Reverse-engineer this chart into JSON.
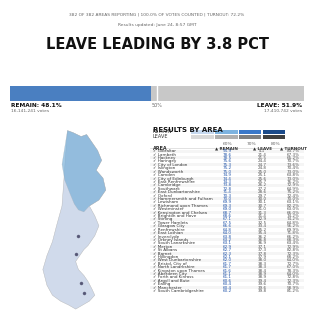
{
  "title": "LEAVE LEADING BY 3.8 PCT",
  "subtitle_line1": "382 OF 382 AREAS REPORTING | 100.0% OF VOTES COUNTED | TURNOUT: 72.2%",
  "subtitle_line2": "Results updated: June 24, 8:57 GMT",
  "remain_pct": 48.1,
  "leave_pct": 51.9,
  "remain_label": "REMAIN: 48.1%",
  "remain_votes": "16,141,241 votes",
  "leave_label": "LEAVE: 51.9%",
  "leave_votes": "17,410,742 votes",
  "remain_bar_color": "#4a7fc1",
  "leave_bar_color": "#c8c8c8",
  "results_title": "RESULTS BY AREA",
  "legend_remain_colors": [
    "#c6d9f0",
    "#7db3e0",
    "#3a78c9",
    "#1a4a8a"
  ],
  "legend_leave_colors": [
    "#d9d9d9",
    "#b0b0b0",
    "#808080",
    "#404040"
  ],
  "pct_labels": [
    "60%",
    "70%",
    "80%"
  ],
  "areas": [
    {
      "name": "Gibraltar",
      "remain": 95.9,
      "leave": 4.1,
      "turnout": 83.7
    },
    {
      "name": "Lambeth",
      "remain": 78.6,
      "leave": 21.4,
      "turnout": 67.3
    },
    {
      "name": "Hackney",
      "remain": 78.5,
      "leave": 21.5,
      "turnout": 65.2
    },
    {
      "name": "Haringey",
      "remain": 75.6,
      "leave": 24.4,
      "turnout": 70.7
    },
    {
      "name": "City of London",
      "remain": 75.3,
      "leave": 24.7,
      "turnout": 73.6
    },
    {
      "name": "Islington",
      "remain": 75.2,
      "leave": 24.8,
      "turnout": 70.4
    },
    {
      "name": "Wandsworth",
      "remain": 75.0,
      "leave": 25.0,
      "turnout": 73.0
    },
    {
      "name": "Camden",
      "remain": 74.9,
      "leave": 25.1,
      "turnout": 63.8
    },
    {
      "name": "City of Edinburgh",
      "remain": 74.4,
      "leave": 25.6,
      "turnout": 73.0
    },
    {
      "name": "East Renfrewshire",
      "remain": 74.3,
      "leave": 25.7,
      "turnout": 76.2
    },
    {
      "name": "Cambridge",
      "remain": 73.8,
      "leave": 26.2,
      "turnout": 72.9
    },
    {
      "name": "Southwark",
      "remain": 72.8,
      "leave": 27.2,
      "turnout": 64.9
    },
    {
      "name": "East Dunbartonshire",
      "remain": 71.4,
      "leave": 28.6,
      "turnout": 75.2
    },
    {
      "name": "Oxford",
      "remain": 70.3,
      "leave": 29.7,
      "turnout": 72.4
    },
    {
      "name": "Hammersmith and Fulham",
      "remain": 70.0,
      "leave": 30.0,
      "turnout": 70.0
    },
    {
      "name": "Lewisham",
      "remain": 69.9,
      "leave": 30.1,
      "turnout": 63.1
    },
    {
      "name": "Richmond upon Thames",
      "remain": 69.3,
      "leave": 30.7,
      "turnout": 82.2
    },
    {
      "name": "Westminster",
      "remain": 69.0,
      "leave": 31.0,
      "turnout": 63.0
    },
    {
      "name": "Kensington and Chelsea",
      "remain": 68.7,
      "leave": 31.3,
      "turnout": 66.0
    },
    {
      "name": "Brighton and Hove",
      "remain": 68.6,
      "leave": 31.4,
      "turnout": 74.2
    },
    {
      "name": "Stirling",
      "remain": 67.1,
      "leave": 32.9,
      "turnout": 74.2
    },
    {
      "name": "Tower Hamlets",
      "remain": 67.5,
      "leave": 32.5,
      "turnout": 64.8
    },
    {
      "name": "Glasgow City",
      "remain": 66.6,
      "leave": 33.4,
      "turnout": 56.2
    },
    {
      "name": "Renfrewshire",
      "remain": 64.8,
      "leave": 35.2,
      "turnout": 69.9
    },
    {
      "name": "East Lothian",
      "remain": 64.0,
      "leave": 35.4,
      "turnout": 71.8
    },
    {
      "name": "Inverclyde",
      "remain": 63.8,
      "leave": 36.2,
      "turnout": 66.2
    },
    {
      "name": "Orkney Islands",
      "remain": 63.2,
      "leave": 36.8,
      "turnout": 68.3
    },
    {
      "name": "South Lanarkshire",
      "remain": 63.1,
      "leave": 36.9,
      "turnout": 63.4
    },
    {
      "name": "Merton",
      "remain": 62.9,
      "leave": 37.1,
      "turnout": 72.9
    },
    {
      "name": "St Albans",
      "remain": 62.7,
      "leave": 37.3,
      "turnout": 82.8
    },
    {
      "name": "Barnet",
      "remain": 62.3,
      "leave": 37.8,
      "turnout": 72.3
    },
    {
      "name": "Hillingdon",
      "remain": 62.1,
      "leave": 37.9,
      "turnout": 68.2
    },
    {
      "name": "West Dunbartonshire",
      "remain": 62.0,
      "leave": 38.0,
      "turnout": 64.0
    },
    {
      "name": "Bristol, City of",
      "remain": 61.7,
      "leave": 38.3,
      "turnout": 72.7
    },
    {
      "name": "North Lanarkshire",
      "remain": 61.7,
      "leave": 38.3,
      "turnout": 67.0
    },
    {
      "name": "Kingston upon Thames",
      "remain": 61.6,
      "leave": 38.4,
      "turnout": 78.3
    },
    {
      "name": "Aberdeen City",
      "remain": 61.1,
      "leave": 38.9,
      "turnout": 64.0
    },
    {
      "name": "Forth and Kinross",
      "remain": 61.1,
      "leave": 38.9,
      "turnout": 72.8
    },
    {
      "name": "Argyll and Bute",
      "remain": 60.6,
      "leave": 39.4,
      "turnout": 72.3
    },
    {
      "name": "Ealing",
      "remain": 60.4,
      "leave": 39.6,
      "turnout": 70.7
    },
    {
      "name": "Manchester",
      "remain": 60.4,
      "leave": 39.6,
      "turnout": 58.9
    },
    {
      "name": "South Cambridgeshire",
      "remain": 60.2,
      "leave": 39.8,
      "turnout": 81.2
    }
  ],
  "bg_color": "#ffffff"
}
